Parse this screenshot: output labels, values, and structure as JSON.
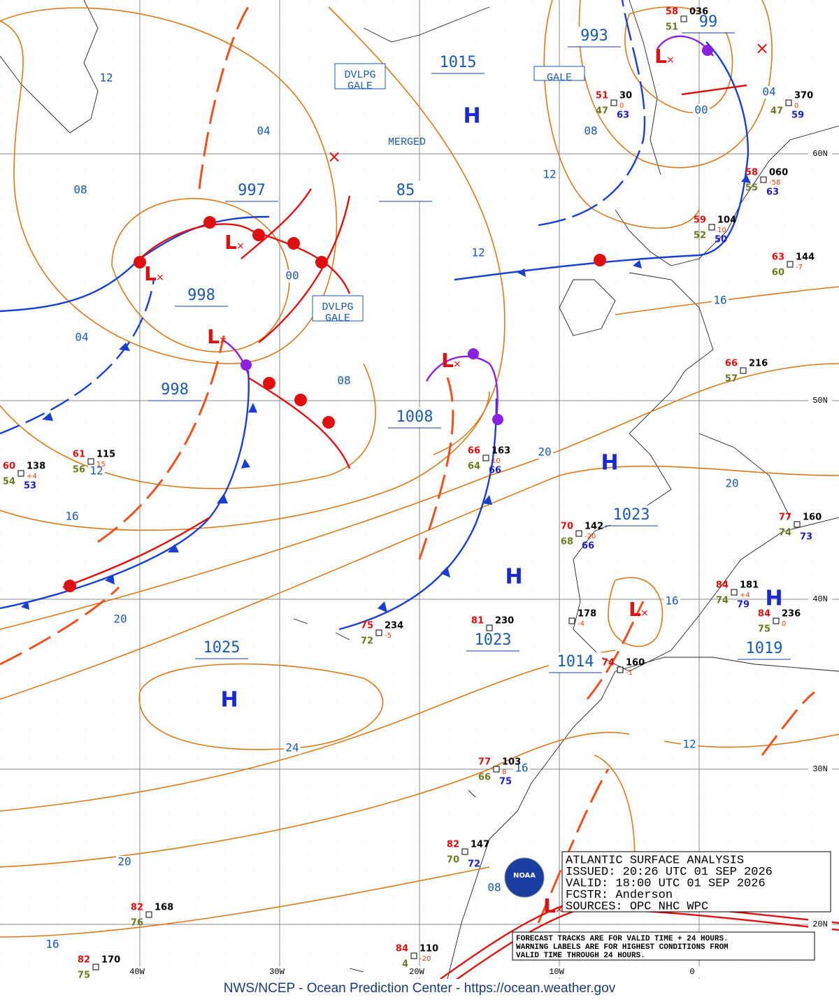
{
  "grid_labels": [
    "60N",
    "50N",
    "40N",
    "30N",
    "20N",
    "40W",
    "30W",
    "20W",
    "10W",
    "0"
  ],
  "pressure_labels": [
    "993",
    "99",
    "1015",
    "997",
    "85",
    "998",
    "998",
    "1008",
    "1023",
    "1023",
    "1025",
    "1014",
    "1019"
  ],
  "highs": [
    "H",
    "H",
    "H",
    "H",
    "H"
  ],
  "lows": [
    "L",
    "L",
    "L",
    "L",
    "L",
    "L",
    "L"
  ],
  "isobar_labels": [
    "12",
    "04",
    "08",
    "00",
    "04",
    "08",
    "12",
    "12",
    "08",
    "00",
    "04",
    "16",
    "20",
    "20",
    "12",
    "16",
    "20",
    "16",
    "24",
    "12",
    "16",
    "20",
    "08",
    "16"
  ],
  "warnings": [
    [
      "DVLPG",
      "GALE"
    ],
    [
      "GALE"
    ],
    [
      "MERGED"
    ],
    [
      "DVLPG",
      "GALE"
    ]
  ],
  "stations": [
    {
      "temp": "60",
      "dew": "54",
      "pres": "138",
      "vis": "53",
      "tend": "+4"
    },
    {
      "temp": "61",
      "dew": "56",
      "pres": "115",
      "vis": "",
      "tend": "15"
    },
    {
      "temp": "51",
      "dew": "47",
      "pres": "30",
      "vis": "63",
      "tend": "0"
    },
    {
      "temp": "58",
      "dew": "51",
      "pres": "036",
      "vis": "",
      "tend": ""
    },
    {
      "temp": "",
      "dew": "47",
      "pres": "370",
      "vis": "59",
      "tend": "0"
    },
    {
      "temp": "58",
      "dew": "55",
      "pres": "060",
      "vis": "63",
      "tend": "-58"
    },
    {
      "temp": "59",
      "dew": "52",
      "pres": "104",
      "vis": "50",
      "tend": "10"
    },
    {
      "temp": "63",
      "dew": "60",
      "pres": "144",
      "vis": "",
      "tend": "-7"
    },
    {
      "temp": "66",
      "dew": "57",
      "pres": "216",
      "vis": "",
      "tend": ""
    },
    {
      "temp": "66",
      "dew": "64",
      "pres": "163",
      "vis": "66",
      "tend": "10"
    },
    {
      "temp": "70",
      "dew": "68",
      "pres": "142",
      "vis": "66",
      "tend": "-20"
    },
    {
      "temp": "77",
      "dew": "74",
      "pres": "160",
      "vis": "73",
      "tend": ""
    },
    {
      "temp": "84",
      "dew": "74",
      "pres": "181",
      "vis": "79",
      "tend": "+4"
    },
    {
      "temp": "84",
      "dew": "75",
      "pres": "236",
      "vis": "",
      "tend": "0"
    },
    {
      "temp": "75",
      "dew": "72",
      "pres": "234",
      "vis": "",
      "tend": "-5"
    },
    {
      "temp": "81",
      "dew": "",
      "pres": "230",
      "vis": "",
      "tend": ""
    },
    {
      "temp": "",
      "dew": "",
      "pres": "178",
      "vis": "",
      "tend": "-4"
    },
    {
      "temp": "74",
      "dew": "",
      "pres": "160",
      "vis": "",
      "tend": "-1"
    },
    {
      "temp": "77",
      "dew": "66",
      "pres": "103",
      "vis": "75",
      "tend": "8"
    },
    {
      "temp": "82",
      "dew": "70",
      "pres": "147",
      "vis": "72",
      "tend": ""
    },
    {
      "temp": "82",
      "dew": "76",
      "pres": "168",
      "vis": "",
      "tend": ""
    },
    {
      "temp": "82",
      "dew": "75",
      "pres": "170",
      "vis": "",
      "tend": ""
    },
    {
      "temp": "84",
      "dew": "4",
      "pres": "110",
      "vis": "",
      "tend": "-20"
    }
  ],
  "info_box": [
    "ATLANTIC SURFACE ANALYSIS",
    "ISSUED: 20:26 UTC 01 SEP 2026",
    "VALID:  18:00 UTC 01 SEP 2026",
    "FCSTR:  Anderson",
    "SOURCES: OPC NHC WPC"
  ],
  "note": [
    "FORECAST TRACKS ARE FOR VALID TIME + 24 HOURS.",
    "WARNING LABELS ARE FOR HIGHEST CONDITIONS FROM",
    "VALID TIME THROUGH 24 HOURS."
  ],
  "logo": "NOAA",
  "footer": "NWS/NCEP - Ocean Prediction Center - https://ocean.weather.gov"
}
